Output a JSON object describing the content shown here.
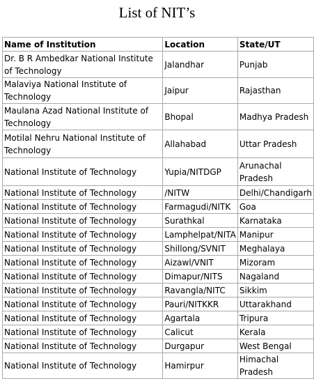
{
  "title": "List of NIT’s",
  "table": {
    "headers": [
      "Name of Institution",
      "Location",
      "State/UT"
    ],
    "rows": [
      {
        "name": "Dr. B R Ambedkar National Institute of Technology",
        "location": "Jalandhar",
        "state": "Punjab"
      },
      {
        "name": "Malaviya National Institute of Technology",
        "location": "Jaipur",
        "state": "Rajasthan"
      },
      {
        "name": "Maulana Azad National Institute of Technology",
        "location": "Bhopal",
        "state": "Madhya Pradesh"
      },
      {
        "name": "Motilal Nehru National Institute of Technology",
        "location": "Allahabad",
        "state": "Uttar Pradesh"
      },
      {
        "name": "National Institute of Technology",
        "location": "Yupia/NITDGP",
        "state": "Arunachal Pradesh"
      },
      {
        "name": "National Institute of Technology",
        "location": "/NITW",
        "state": "Delhi/Chandigarh"
      },
      {
        "name": "National Institute of Technology",
        "location": "Farmagudi/NITK",
        "state": "Goa"
      },
      {
        "name": "National Institute of Technology",
        "location": "Surathkal",
        "state": "Karnataka"
      },
      {
        "name": "National Institute of Technology",
        "location": "Lamphelpat/NITA",
        "state": "Manipur"
      },
      {
        "name": "National Institute of Technology",
        "location": "Shillong/SVNIT",
        "state": "Meghalaya"
      },
      {
        "name": "National Institute of Technology",
        "location": "Aizawl/VNIT",
        "state": "Mizoram"
      },
      {
        "name": "National Institute of Technology",
        "location": "Dimapur/NITS",
        "state": "Nagaland"
      },
      {
        "name": "National Institute of Technology",
        "location": "Ravangla/NITC",
        "state": "Sikkim"
      },
      {
        "name": "National Institute of Technology",
        "location": "Pauri/NITKKR",
        "state": "Uttarakhand"
      },
      {
        "name": "National Institute of Technology",
        "location": "Agartala",
        "state": "Tripura"
      },
      {
        "name": "National Institute of Technology",
        "location": "Calicut",
        "state": "Kerala"
      },
      {
        "name": "National Institute of Technology",
        "location": "Durgapur",
        "state": "West Bengal"
      },
      {
        "name": "National Institute of Technology",
        "location": "Hamirpur",
        "state": "Himachal Pradesh"
      }
    ]
  }
}
